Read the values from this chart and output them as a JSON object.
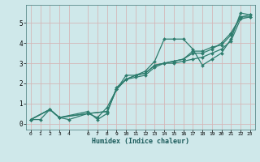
{
  "xlabel": "Humidex (Indice chaleur)",
  "ylabel": "",
  "xlim": [
    -0.5,
    23.5
  ],
  "ylim": [
    -0.3,
    5.9
  ],
  "xticks": [
    0,
    1,
    2,
    3,
    4,
    6,
    7,
    8,
    9,
    10,
    11,
    12,
    13,
    14,
    15,
    16,
    17,
    18,
    19,
    20,
    21,
    22,
    23
  ],
  "yticks": [
    0,
    1,
    2,
    3,
    4,
    5
  ],
  "bg_color": "#cfe8ea",
  "grid_color": "#b8d4d6",
  "line_color": "#2e7d6e",
  "lines": [
    {
      "x": [
        0,
        1,
        2,
        3,
        4,
        6,
        7,
        8,
        9,
        10,
        11,
        12,
        13,
        14,
        15,
        16,
        17,
        18,
        19,
        20,
        21,
        22,
        23
      ],
      "y": [
        0.2,
        0.2,
        0.7,
        0.3,
        0.2,
        0.5,
        0.3,
        0.8,
        1.7,
        2.4,
        2.4,
        2.6,
        3.1,
        4.2,
        4.2,
        4.2,
        3.7,
        2.9,
        3.2,
        3.5,
        4.2,
        5.5,
        5.4
      ]
    },
    {
      "x": [
        0,
        2,
        3,
        6,
        7,
        8,
        9,
        10,
        11,
        12,
        13,
        14,
        15,
        16,
        17,
        18,
        19,
        20,
        21,
        22,
        23
      ],
      "y": [
        0.2,
        0.7,
        0.3,
        0.6,
        0.2,
        0.5,
        1.8,
        2.2,
        2.4,
        2.5,
        2.9,
        3.0,
        3.0,
        3.1,
        3.2,
        3.3,
        3.5,
        3.7,
        4.1,
        5.2,
        5.3
      ]
    },
    {
      "x": [
        0,
        2,
        3,
        6,
        8,
        9,
        10,
        11,
        12,
        13,
        14,
        15,
        16,
        17,
        18,
        19,
        20,
        21,
        22,
        23
      ],
      "y": [
        0.2,
        0.7,
        0.3,
        0.5,
        0.6,
        1.7,
        2.2,
        2.4,
        2.5,
        2.9,
        3.0,
        3.1,
        3.2,
        3.5,
        3.5,
        3.7,
        4.0,
        4.5,
        5.3,
        5.4
      ]
    },
    {
      "x": [
        0,
        2,
        3,
        6,
        8,
        9,
        10,
        11,
        12,
        13,
        14,
        15,
        16,
        17,
        18,
        19,
        20,
        21,
        22,
        23
      ],
      "y": [
        0.2,
        0.7,
        0.3,
        0.5,
        0.6,
        1.7,
        2.2,
        2.3,
        2.4,
        2.8,
        3.0,
        3.1,
        3.2,
        3.6,
        3.6,
        3.8,
        3.9,
        4.4,
        5.3,
        5.3
      ]
    }
  ]
}
